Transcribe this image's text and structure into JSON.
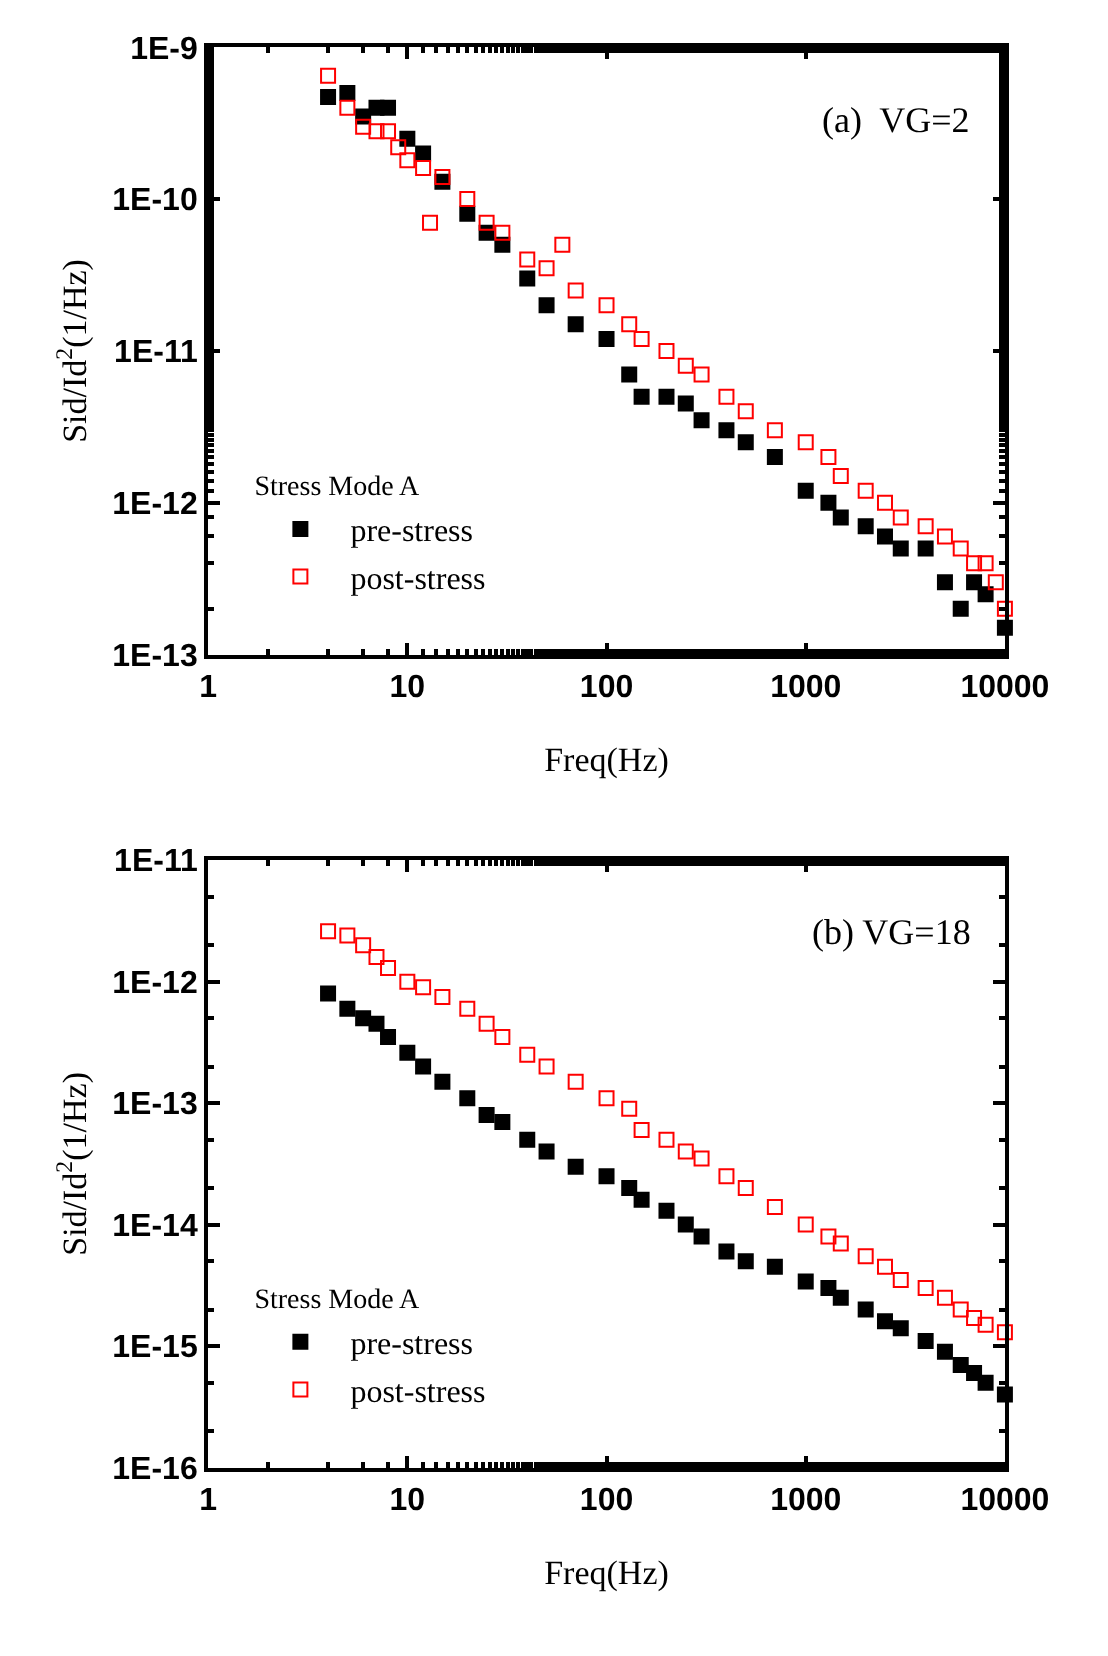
{
  "chart_data": [
    {
      "type": "scatter",
      "xlabel": "Freq(Hz)",
      "ylabel": "Sid/Id$^{2}$(1/Hz)",
      "legend_title": "Stress Mode A",
      "annotations": [
        "(a)  VG=2"
      ],
      "log": "xy",
      "legend": "bottom left",
      "marker": "square",
      "xlim": [
        1,
        10000
      ],
      "xticks": [
        1,
        10,
        100,
        1000,
        10000
      ],
      "ylim": [
        1e-13,
        1e-09
      ],
      "yticks": [
        {
          "value": 1e-13,
          "label": "1E-13"
        },
        {
          "value": 1e-12,
          "label": "1E-12"
        },
        {
          "value": 1e-11,
          "label": "1E-11"
        },
        {
          "value": 1e-10,
          "label": "1E-10"
        },
        {
          "value": 1e-09,
          "label": "1E-9"
        }
      ],
      "series": [
        {
          "name": "pre-stress",
          "color": "#000000",
          "x": [
            4,
            5,
            6,
            7,
            8,
            10,
            12,
            15,
            20,
            25,
            30,
            40,
            50,
            70,
            100,
            130,
            150,
            200,
            250,
            300,
            400,
            500,
            700,
            1000,
            1300,
            1500,
            2000,
            2500,
            3000,
            4000,
            5000,
            6000,
            7000,
            8000,
            10000
          ],
          "values": [
            4.7e-10,
            5e-10,
            3.5e-10,
            4e-10,
            4e-10,
            2.5e-10,
            2e-10,
            1.3e-10,
            8e-11,
            6e-11,
            5e-11,
            3e-11,
            2e-11,
            1.5e-11,
            1.2e-11,
            7e-12,
            5e-12,
            5e-12,
            4.5e-12,
            3.5e-12,
            3e-12,
            2.5e-12,
            2e-12,
            1.2e-12,
            1e-12,
            8e-13,
            7e-13,
            6e-13,
            5e-13,
            5e-13,
            3e-13,
            2e-13,
            3e-13,
            2.5e-13,
            1.5e-13
          ]
        },
        {
          "name": "post-stress",
          "color": "#ff0000",
          "x": [
            4,
            5,
            6,
            7,
            8,
            9,
            10,
            12,
            13,
            15,
            20,
            25,
            30,
            40,
            50,
            60,
            70,
            100,
            130,
            150,
            200,
            250,
            300,
            400,
            500,
            700,
            1000,
            1300,
            1500,
            2000,
            2500,
            3000,
            4000,
            5000,
            6000,
            7000,
            8000,
            9000,
            10000
          ],
          "values": [
            6.5e-10,
            4e-10,
            3e-10,
            2.8e-10,
            2.8e-10,
            2.2e-10,
            1.8e-10,
            1.6e-10,
            7e-11,
            1.4e-10,
            1e-10,
            7e-11,
            6e-11,
            4e-11,
            3.5e-11,
            5e-11,
            2.5e-11,
            2e-11,
            1.5e-11,
            1.2e-11,
            1e-11,
            8e-12,
            7e-12,
            5e-12,
            4e-12,
            3e-12,
            2.5e-12,
            2e-12,
            1.5e-12,
            1.2e-12,
            1e-12,
            8e-13,
            7e-13,
            6e-13,
            5e-13,
            4e-13,
            4e-13,
            3e-13,
            2e-13
          ]
        }
      ]
    },
    {
      "type": "scatter",
      "xlabel": "Freq(Hz)",
      "ylabel": "Sid/Id$^{2}$(1/Hz)",
      "legend_title": "Stress Mode A",
      "annotations": [
        "(b) VG=18"
      ],
      "log": "xy",
      "legend": "bottom left",
      "marker": "square",
      "xlim": [
        1,
        10000
      ],
      "xticks": [
        1,
        10,
        100,
        1000,
        10000
      ],
      "ylim": [
        1e-16,
        1e-11
      ],
      "yticks": [
        {
          "value": 1e-16,
          "label": "1E-16"
        },
        {
          "value": 1e-15,
          "label": "1E-15"
        },
        {
          "value": 1e-14,
          "label": "1E-14"
        },
        {
          "value": 1e-13,
          "label": "1E-13"
        },
        {
          "value": 1e-12,
          "label": "1E-12"
        },
        {
          "value": 1e-11,
          "label": "1E-11"
        }
      ],
      "series": [
        {
          "name": "pre-stress",
          "color": "#000000",
          "x": [
            4,
            5,
            6,
            7,
            8,
            10,
            12,
            15,
            20,
            25,
            30,
            40,
            50,
            70,
            100,
            130,
            150,
            200,
            250,
            300,
            400,
            500,
            700,
            1000,
            1300,
            1500,
            2000,
            2500,
            3000,
            4000,
            5000,
            6000,
            7000,
            8000,
            10000
          ],
          "values": [
            8e-13,
            6e-13,
            5e-13,
            4.5e-13,
            3.5e-13,
            2.6e-13,
            2e-13,
            1.5e-13,
            1.1e-13,
            8e-14,
            7e-14,
            5e-14,
            4e-14,
            3e-14,
            2.5e-14,
            2e-14,
            1.6e-14,
            1.3e-14,
            1e-14,
            8e-15,
            6e-15,
            5e-15,
            4.5e-15,
            3.4e-15,
            3e-15,
            2.5e-15,
            2e-15,
            1.6e-15,
            1.4e-15,
            1.1e-15,
            9e-16,
            7e-16,
            6e-16,
            5e-16,
            4e-16
          ]
        },
        {
          "name": "post-stress",
          "color": "#ff0000",
          "x": [
            4,
            5,
            6,
            7,
            8,
            10,
            12,
            15,
            20,
            25,
            30,
            40,
            50,
            70,
            100,
            130,
            150,
            200,
            250,
            300,
            400,
            500,
            700,
            1000,
            1300,
            1500,
            2000,
            2500,
            3000,
            4000,
            5000,
            6000,
            7000,
            8000,
            10000
          ],
          "values": [
            2.6e-12,
            2.4e-12,
            2e-12,
            1.6e-12,
            1.3e-12,
            1e-12,
            9e-13,
            7.5e-13,
            6e-13,
            4.5e-13,
            3.5e-13,
            2.5e-13,
            2e-13,
            1.5e-13,
            1.1e-13,
            9e-14,
            6e-14,
            5e-14,
            4e-14,
            3.5e-14,
            2.5e-14,
            2e-14,
            1.4e-14,
            1e-14,
            8e-15,
            7e-15,
            5.5e-15,
            4.5e-15,
            3.5e-15,
            3e-15,
            2.5e-15,
            2e-15,
            1.7e-15,
            1.5e-15,
            1.3e-15
          ]
        }
      ]
    }
  ]
}
